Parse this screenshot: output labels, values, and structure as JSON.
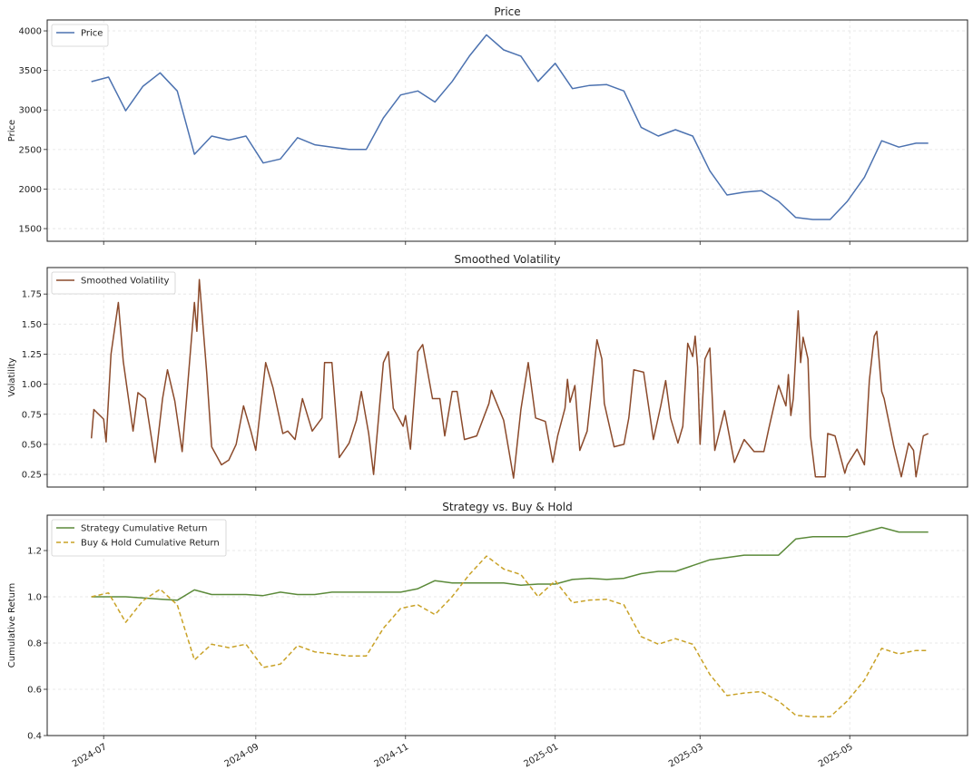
{
  "colors": {
    "price": "#4c72b0",
    "volatility": "#8b4a2b",
    "strategy": "#5b8a3a",
    "buy_hold": "#c9a227"
  },
  "chart_data": [
    {
      "type": "line",
      "title": "Price",
      "ylabel": "Price",
      "legend": [
        "Price"
      ],
      "legend_placement": "upper-left",
      "grid": true,
      "xlim": [
        "2024-06-08",
        "2025-06-18"
      ],
      "ylim": [
        1340,
        4138
      ],
      "yticks": [
        1500,
        2000,
        2500,
        3000,
        3500,
        4000
      ],
      "x_tick_labels_shown": false,
      "series": [
        {
          "name": "Price",
          "color_key": "price",
          "dates": [
            "2024-06-26",
            "2024-07-03",
            "2024-07-10",
            "2024-07-17",
            "2024-07-24",
            "2024-07-31",
            "2024-08-07",
            "2024-08-14",
            "2024-08-21",
            "2024-08-28",
            "2024-09-04",
            "2024-09-11",
            "2024-09-18",
            "2024-09-25",
            "2024-10-02",
            "2024-10-09",
            "2024-10-16",
            "2024-10-23",
            "2024-10-30",
            "2024-11-06",
            "2024-11-13",
            "2024-11-20",
            "2024-11-27",
            "2024-12-04",
            "2024-12-11",
            "2024-12-18",
            "2024-12-25",
            "2025-01-01",
            "2025-01-08",
            "2025-01-15",
            "2025-01-22",
            "2025-01-29",
            "2025-02-05",
            "2025-02-12",
            "2025-02-19",
            "2025-02-26",
            "2025-03-05",
            "2025-03-12",
            "2025-03-19",
            "2025-03-26",
            "2025-04-02",
            "2025-04-09",
            "2025-04-16",
            "2025-04-23",
            "2025-04-30",
            "2025-05-07",
            "2025-05-14",
            "2025-05-21",
            "2025-05-28",
            "2025-06-02"
          ],
          "values": [
            3358,
            3415,
            2990,
            3300,
            3470,
            3240,
            2440,
            2670,
            2620,
            2670,
            2330,
            2380,
            2650,
            2560,
            2530,
            2500,
            2500,
            2900,
            3190,
            3240,
            3100,
            3360,
            3680,
            3950,
            3760,
            3680,
            3360,
            3590,
            3270,
            3310,
            3320,
            3240,
            2780,
            2670,
            2750,
            2670,
            2230,
            1925,
            1960,
            1980,
            1845,
            1640,
            1615,
            1615,
            1845,
            2150,
            2610,
            2530,
            2580,
            2580
          ]
        }
      ]
    },
    {
      "type": "line",
      "title": "Smoothed Volatility",
      "ylabel": "Volatility",
      "legend": [
        "Smoothed Volatility"
      ],
      "legend_placement": "upper-left",
      "grid": true,
      "xlim": [
        "2024-06-08",
        "2025-06-18"
      ],
      "ylim": [
        0.145,
        1.97
      ],
      "yticks": [
        0.25,
        0.5,
        0.75,
        1.0,
        1.25,
        1.5,
        1.75
      ],
      "x_tick_labels_shown": false,
      "series": [
        {
          "name": "Smoothed Volatility",
          "color_key": "volatility",
          "dates": [
            "2024-06-26",
            "2024-06-27",
            "2024-07-01",
            "2024-07-02",
            "2024-07-04",
            "2024-07-07",
            "2024-07-09",
            "2024-07-13",
            "2024-07-15",
            "2024-07-18",
            "2024-07-22",
            "2024-07-25",
            "2024-07-27",
            "2024-07-30",
            "2024-08-02",
            "2024-08-04",
            "2024-08-07",
            "2024-08-08",
            "2024-08-09",
            "2024-08-12",
            "2024-08-14",
            "2024-08-18",
            "2024-08-21",
            "2024-08-24",
            "2024-08-27",
            "2024-08-30",
            "2024-09-01",
            "2024-09-05",
            "2024-09-08",
            "2024-09-12",
            "2024-09-14",
            "2024-09-17",
            "2024-09-20",
            "2024-09-24",
            "2024-09-28",
            "2024-09-29",
            "2024-10-02",
            "2024-10-05",
            "2024-10-09",
            "2024-10-12",
            "2024-10-14",
            "2024-10-17",
            "2024-10-19",
            "2024-10-23",
            "2024-10-25",
            "2024-10-27",
            "2024-10-31",
            "2024-11-01",
            "2024-11-03",
            "2024-11-06",
            "2024-11-08",
            "2024-11-12",
            "2024-11-15",
            "2024-11-17",
            "2024-11-20",
            "2024-11-22",
            "2024-11-25",
            "2024-11-30",
            "2024-12-05",
            "2024-12-06",
            "2024-12-11",
            "2024-12-13",
            "2024-12-15",
            "2024-12-18",
            "2024-12-21",
            "2024-12-24",
            "2024-12-28",
            "2024-12-31",
            "2025-01-02",
            "2025-01-05",
            "2025-01-06",
            "2025-01-07",
            "2025-01-09",
            "2025-01-11",
            "2025-01-14",
            "2025-01-18",
            "2025-01-20",
            "2025-01-21",
            "2025-01-25",
            "2025-01-29",
            "2025-01-31",
            "2025-02-02",
            "2025-02-06",
            "2025-02-10",
            "2025-02-13",
            "2025-02-15",
            "2025-02-17",
            "2025-02-20",
            "2025-02-22",
            "2025-02-24",
            "2025-02-26",
            "2025-02-27",
            "2025-02-28",
            "2025-03-01",
            "2025-03-03",
            "2025-03-05",
            "2025-03-07",
            "2025-03-11",
            "2025-03-15",
            "2025-03-19",
            "2025-03-23",
            "2025-03-27",
            "2025-03-29",
            "2025-04-02",
            "2025-04-05",
            "2025-04-06",
            "2025-04-07",
            "2025-04-08",
            "2025-04-10",
            "2025-04-11",
            "2025-04-12",
            "2025-04-14",
            "2025-04-15",
            "2025-04-17",
            "2025-04-21",
            "2025-04-22",
            "2025-04-25",
            "2025-04-29",
            "2025-04-30",
            "2025-05-04",
            "2025-05-07",
            "2025-05-09",
            "2025-05-11",
            "2025-05-12",
            "2025-05-14",
            "2025-05-15",
            "2025-05-19",
            "2025-05-22",
            "2025-05-25",
            "2025-05-27",
            "2025-05-28",
            "2025-05-31",
            "2025-06-02"
          ],
          "values": [
            0.55,
            0.79,
            0.71,
            0.52,
            1.25,
            1.68,
            1.19,
            0.61,
            0.93,
            0.88,
            0.35,
            0.88,
            1.12,
            0.86,
            0.44,
            0.93,
            1.68,
            1.44,
            1.87,
            1.09,
            0.48,
            0.33,
            0.37,
            0.5,
            0.82,
            0.61,
            0.45,
            1.18,
            0.97,
            0.59,
            0.61,
            0.54,
            0.88,
            0.61,
            0.72,
            1.18,
            1.18,
            0.39,
            0.51,
            0.7,
            0.94,
            0.59,
            0.25,
            1.18,
            1.27,
            0.8,
            0.65,
            0.74,
            0.46,
            1.27,
            1.33,
            0.88,
            0.88,
            0.57,
            0.94,
            0.94,
            0.54,
            0.57,
            0.84,
            0.95,
            0.7,
            0.46,
            0.22,
            0.79,
            1.18,
            0.72,
            0.69,
            0.35,
            0.57,
            0.8,
            1.04,
            0.85,
            0.99,
            0.45,
            0.61,
            1.37,
            1.21,
            0.84,
            0.48,
            0.5,
            0.72,
            1.12,
            1.1,
            0.54,
            0.82,
            1.03,
            0.72,
            0.51,
            0.65,
            1.34,
            1.23,
            1.4,
            1.14,
            0.5,
            1.21,
            1.3,
            0.45,
            0.78,
            0.35,
            0.54,
            0.44,
            0.44,
            0.63,
            0.99,
            0.82,
            1.08,
            0.74,
            0.88,
            1.61,
            1.18,
            1.39,
            1.21,
            0.57,
            0.23,
            0.23,
            0.59,
            0.57,
            0.26,
            0.33,
            0.46,
            0.33,
            1.03,
            1.4,
            1.44,
            0.94,
            0.88,
            0.48,
            0.23,
            0.51,
            0.45,
            0.23,
            0.57,
            0.59
          ]
        }
      ]
    },
    {
      "type": "line",
      "title": "Strategy vs. Buy & Hold",
      "ylabel": "Cumulative Return",
      "legend": [
        "Strategy Cumulative Return",
        "Buy & Hold Cumulative Return"
      ],
      "legend_placement": "upper-left",
      "grid": true,
      "xlim": [
        "2024-06-08",
        "2025-06-18"
      ],
      "ylim": [
        0.4,
        1.353
      ],
      "yticks": [
        0.4,
        0.6,
        0.8,
        1.0,
        1.2
      ],
      "xticks": [
        "2024-07-01",
        "2024-09-01",
        "2024-11-01",
        "2025-01-01",
        "2025-03-01",
        "2025-05-01"
      ],
      "xtick_labels": [
        "2024-07",
        "2024-09",
        "2024-11",
        "2025-01",
        "2025-03",
        "2025-05"
      ],
      "series": [
        {
          "name": "Strategy Cumulative Return",
          "color_key": "strategy",
          "style": "solid",
          "dates": [
            "2024-06-26",
            "2024-07-03",
            "2024-07-10",
            "2024-07-17",
            "2024-07-24",
            "2024-07-31",
            "2024-08-07",
            "2024-08-14",
            "2024-08-21",
            "2024-08-28",
            "2024-09-04",
            "2024-09-11",
            "2024-09-18",
            "2024-09-25",
            "2024-10-02",
            "2024-10-09",
            "2024-10-16",
            "2024-10-23",
            "2024-10-30",
            "2024-11-06",
            "2024-11-13",
            "2024-11-20",
            "2024-11-27",
            "2024-12-04",
            "2024-12-11",
            "2024-12-18",
            "2024-12-25",
            "2025-01-01",
            "2025-01-08",
            "2025-01-15",
            "2025-01-22",
            "2025-01-29",
            "2025-02-05",
            "2025-02-12",
            "2025-02-19",
            "2025-02-26",
            "2025-03-05",
            "2025-03-12",
            "2025-03-19",
            "2025-03-26",
            "2025-04-02",
            "2025-04-09",
            "2025-04-16",
            "2025-04-23",
            "2025-04-30",
            "2025-05-07",
            "2025-05-14",
            "2025-05-21",
            "2025-05-28",
            "2025-06-02"
          ],
          "values": [
            1.0,
            1.0,
            1.0,
            0.995,
            0.99,
            0.985,
            1.03,
            1.01,
            1.01,
            1.01,
            1.005,
            1.02,
            1.01,
            1.01,
            1.02,
            1.02,
            1.02,
            1.02,
            1.02,
            1.035,
            1.07,
            1.06,
            1.06,
            1.06,
            1.06,
            1.05,
            1.055,
            1.055,
            1.075,
            1.08,
            1.075,
            1.08,
            1.1,
            1.11,
            1.11,
            1.135,
            1.16,
            1.17,
            1.18,
            1.18,
            1.18,
            1.25,
            1.26,
            1.26,
            1.26,
            1.28,
            1.3,
            1.28,
            1.28,
            1.28
          ]
        },
        {
          "name": "Buy & Hold Cumulative Return",
          "color_key": "buy_hold",
          "style": "dashed",
          "dates": [
            "2024-06-26",
            "2024-07-03",
            "2024-07-10",
            "2024-07-17",
            "2024-07-24",
            "2024-07-31",
            "2024-08-07",
            "2024-08-14",
            "2024-08-21",
            "2024-08-28",
            "2024-09-04",
            "2024-09-11",
            "2024-09-18",
            "2024-09-25",
            "2024-10-02",
            "2024-10-09",
            "2024-10-16",
            "2024-10-23",
            "2024-10-30",
            "2024-11-06",
            "2024-11-13",
            "2024-11-20",
            "2024-11-27",
            "2024-12-04",
            "2024-12-11",
            "2024-12-18",
            "2024-12-25",
            "2025-01-01",
            "2025-01-08",
            "2025-01-15",
            "2025-01-22",
            "2025-01-29",
            "2025-02-05",
            "2025-02-12",
            "2025-02-19",
            "2025-02-26",
            "2025-03-05",
            "2025-03-12",
            "2025-03-19",
            "2025-03-26",
            "2025-04-02",
            "2025-04-09",
            "2025-04-16",
            "2025-04-23",
            "2025-04-30",
            "2025-05-07",
            "2025-05-14",
            "2025-05-21",
            "2025-05-28",
            "2025-06-02"
          ],
          "values": [
            1.0,
            1.017,
            0.89,
            0.983,
            1.033,
            0.965,
            0.727,
            0.795,
            0.78,
            0.795,
            0.694,
            0.709,
            0.789,
            0.762,
            0.753,
            0.744,
            0.744,
            0.864,
            0.95,
            0.965,
            0.923,
            1.001,
            1.096,
            1.176,
            1.12,
            1.096,
            1.001,
            1.069,
            0.974,
            0.986,
            0.989,
            0.965,
            0.828,
            0.795,
            0.819,
            0.795,
            0.664,
            0.573,
            0.584,
            0.59,
            0.549,
            0.488,
            0.481,
            0.481,
            0.549,
            0.64,
            0.777,
            0.753,
            0.768,
            0.768
          ]
        }
      ]
    }
  ]
}
